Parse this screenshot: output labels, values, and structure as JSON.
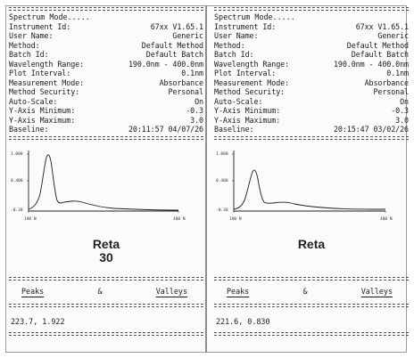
{
  "reports": [
    {
      "mode": "Spectrum Mode.....",
      "fields": [
        {
          "label": "Instrument Id:",
          "value": "67xx V1.65.1"
        },
        {
          "label": "User Name:",
          "value": "Generic"
        },
        {
          "label": "Method:",
          "value": "Default Method"
        },
        {
          "label": "Batch Id:",
          "value": "Default Batch"
        },
        {
          "label": "Wavelength Range:",
          "value": "190.0nm - 400.0nm"
        },
        {
          "label": "Plot Interval:",
          "value": "0.1nm"
        },
        {
          "label": "Measurement Mode:",
          "value": "Absorbance"
        },
        {
          "label": "Method Security:",
          "value": "Personal"
        },
        {
          "label": "Auto-Scale:",
          "value": "On"
        },
        {
          "label": "Y-Axis Minimum:",
          "value": "-0.3"
        },
        {
          "label": "Y-Axis Maximum:",
          "value": "3.0"
        },
        {
          "label": "Baseline:",
          "value": "20:11:57 04/07/26"
        }
      ],
      "plot": {
        "y_tick_labels": [
          "1.000",
          "0.400",
          "-0.30"
        ],
        "x_tick_labels": [
          "190 N",
          "400 N"
        ]
      },
      "caption_lines": [
        "Reta",
        "30"
      ],
      "peaks_header": {
        "peaks": "Peaks",
        "amp": "&",
        "valleys": "Valleys"
      },
      "peak_value": "223.7,  1.922"
    },
    {
      "mode": "Spectrum Mode.....",
      "fields": [
        {
          "label": "Instrument Id:",
          "value": "67xx V1.65.1"
        },
        {
          "label": "User Name:",
          "value": "Generic"
        },
        {
          "label": "Method:",
          "value": "Default Method"
        },
        {
          "label": "Batch Id:",
          "value": "Default Batch"
        },
        {
          "label": "Wavelength Range:",
          "value": "190.0nm - 400.0nm"
        },
        {
          "label": "Plot Interval:",
          "value": "0.1nm"
        },
        {
          "label": "Measurement Mode:",
          "value": "Absorbance"
        },
        {
          "label": "Method Security:",
          "value": "Personal"
        },
        {
          "label": "Auto-Scale:",
          "value": "On"
        },
        {
          "label": "Y-Axis Minimum:",
          "value": "-0.3"
        },
        {
          "label": "Y-Axis Maximum:",
          "value": "3.0"
        },
        {
          "label": "Baseline:",
          "value": "20:15:47 03/02/26"
        }
      ],
      "plot": {
        "y_tick_labels": [
          "1.000",
          "0.400",
          "-0.30"
        ],
        "x_tick_labels": [
          "190 N",
          "400 N"
        ]
      },
      "caption_lines": [
        "Reta",
        ""
      ],
      "peaks_header": {
        "peaks": "Peaks",
        "amp": "&",
        "valleys": "Valleys"
      },
      "peak_value": "221.6,  0.830"
    }
  ]
}
